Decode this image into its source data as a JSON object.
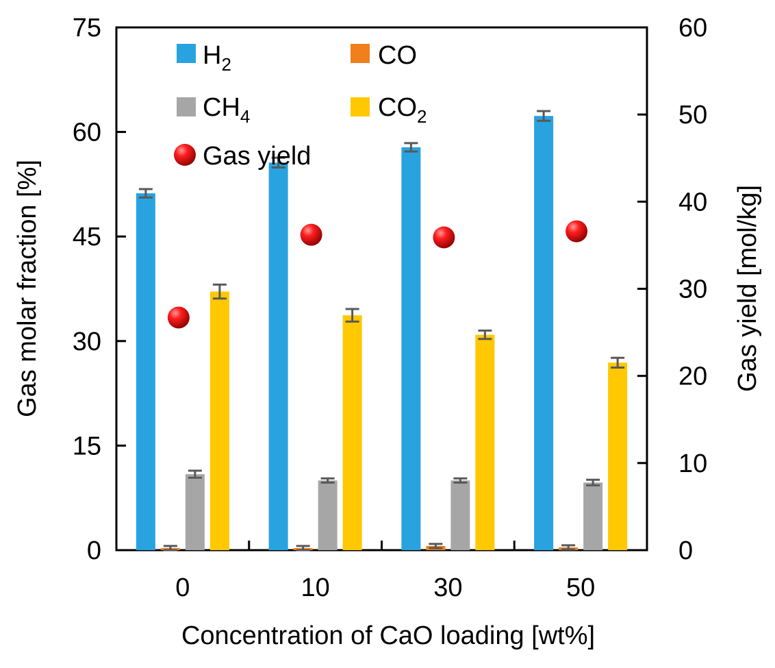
{
  "chart_data": {
    "type": "bar",
    "categories": [
      "0",
      "10",
      "30",
      "50"
    ],
    "series": [
      {
        "name": "H2",
        "label_main": "H",
        "label_sub": "2",
        "color": "#28A3E0",
        "values": [
          51.2,
          55.6,
          57.8,
          62.3
        ],
        "errors": [
          0.6,
          0.7,
          0.6,
          0.7
        ]
      },
      {
        "name": "CO",
        "label_main": "CO",
        "label_sub": "",
        "color": "#F07F1C",
        "values": [
          0.3,
          0.3,
          0.6,
          0.4
        ],
        "errors": [
          0.3,
          0.3,
          0.3,
          0.3
        ]
      },
      {
        "name": "CH4",
        "label_main": "CH",
        "label_sub": "4",
        "color": "#A6A6A6",
        "values": [
          10.9,
          10.0,
          10.0,
          9.7
        ],
        "errors": [
          0.5,
          0.3,
          0.3,
          0.4
        ]
      },
      {
        "name": "CO2",
        "label_main": "CO",
        "label_sub": "2",
        "color": "#FFC800",
        "values": [
          37.1,
          33.7,
          30.9,
          26.9
        ],
        "errors": [
          1.0,
          0.9,
          0.6,
          0.7
        ]
      }
    ],
    "gas_yield": {
      "name": "Gas yield",
      "color": "#E00000",
      "values": [
        26.7,
        36.2,
        35.9,
        36.6
      ]
    },
    "title": "",
    "xlabel": "Concentration of CaO loading [wt%]",
    "ylabel": "Gas molar fraction [%]",
    "y2label": "Gas yield [mol/kg]",
    "ylim": [
      0,
      75
    ],
    "y2lim": [
      0,
      60
    ],
    "yticks": [
      0,
      15,
      30,
      45,
      60,
      75
    ],
    "y2ticks": [
      0,
      10,
      20,
      30,
      40,
      50,
      60
    ],
    "legend_position": "top-left, inside plot",
    "grid": false
  }
}
